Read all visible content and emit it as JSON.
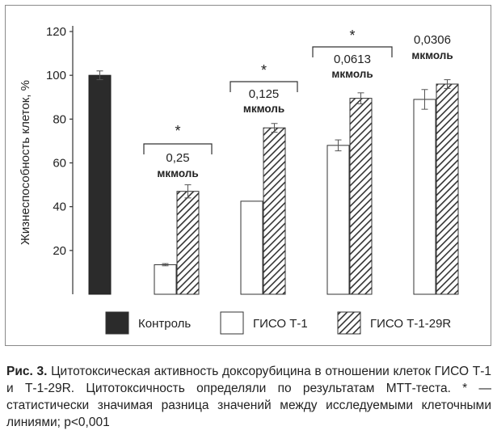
{
  "chart_data": {
    "type": "bar",
    "ylabel": "Жизнеспособность клеток, %",
    "ylim": [
      0,
      120
    ],
    "yticks": [
      "120",
      "100",
      "80",
      "60",
      "40",
      "20"
    ],
    "series": [
      {
        "name": "Контроль",
        "color": "#2b2b2b",
        "values": [
          100,
          null,
          null,
          null,
          null
        ]
      },
      {
        "name": "ГИСО Т-1",
        "color": "#ffffff",
        "values": [
          null,
          13.5,
          42.5,
          68,
          89
        ]
      },
      {
        "name": "ГИСО Т-1-29R",
        "color": "hatch",
        "values": [
          null,
          47,
          76,
          89.5,
          96
        ]
      }
    ],
    "errors": {
      "control": [
        2
      ],
      "giso_t1": [
        0.5,
        0,
        2.5,
        4.5
      ],
      "giso_t1_29r": [
        3,
        2,
        2.5,
        2
      ]
    },
    "groups": [
      {
        "conc": "",
        "unit": "",
        "significance": ""
      },
      {
        "conc": "0,25",
        "unit": "мкмоль",
        "significance": "*"
      },
      {
        "conc": "0,125",
        "unit": "мкмоль",
        "significance": "*"
      },
      {
        "conc": "0,0613",
        "unit": "мкмоль",
        "significance": "*"
      },
      {
        "conc": "0,0306",
        "unit": "мкмоль",
        "significance": ""
      }
    ],
    "legend": [
      "Контроль",
      "ГИСО Т-1",
      "ГИСО Т-1-29R"
    ],
    "legend_position": "bottom",
    "grid": false
  },
  "caption": {
    "label": "Рис. 3.",
    "text": "Цитотоксическая активность доксорубицина в отношении клеток ГИСО Т-1 и Т-1-29R. Цитотоксичность определяли по результатам МТТ-теста. * — статистически значимая разница значений между исследуемыми клеточными линиями; p<0,001"
  }
}
